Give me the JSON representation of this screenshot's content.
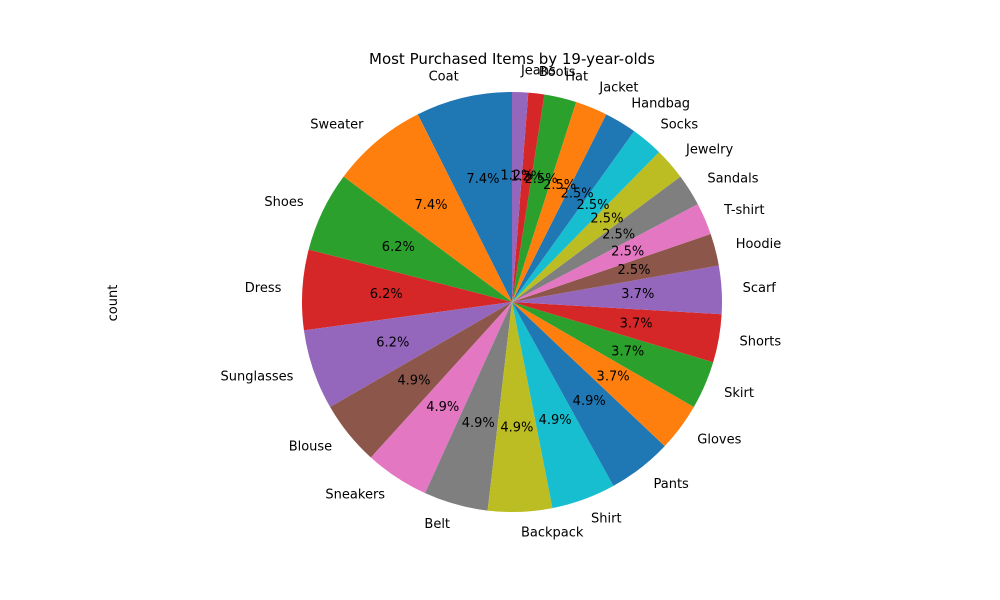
{
  "chart_data": {
    "type": "pie",
    "title": "Most Purchased Items by 19-year-olds",
    "ylabel": "count",
    "start_angle": 90,
    "direction": "counterclockwise",
    "autopct_format": "%1.1f%%",
    "categories": [
      "Coat",
      "Sweater",
      "Shoes",
      "Dress",
      "Sunglasses",
      "Blouse",
      "Sneakers",
      "Belt",
      "Backpack",
      "Shirt",
      "Pants",
      "Gloves",
      "Skirt",
      "Shorts",
      "Scarf",
      "Hoodie",
      "T-shirt",
      "Sandals",
      "Jewelry",
      "Socks",
      "Handbag",
      "Jacket",
      "Hat",
      "Boots",
      "Jeans"
    ],
    "values": [
      6,
      6,
      5,
      5,
      5,
      4,
      4,
      4,
      4,
      4,
      4,
      3,
      3,
      3,
      3,
      2,
      2,
      2,
      2,
      2,
      2,
      2,
      2,
      1,
      1
    ],
    "percent_labels": [
      "7.4%",
      "7.4%",
      "6.2%",
      "6.2%",
      "6.2%",
      "4.9%",
      "4.9%",
      "4.9%",
      "4.9%",
      "4.9%",
      "4.9%",
      "3.7%",
      "3.7%",
      "3.7%",
      "3.7%",
      "2.5%",
      "2.5%",
      "2.5%",
      "2.5%",
      "2.5%",
      "2.5%",
      "2.5%",
      "2.5%",
      "1.2%",
      "1.2%"
    ],
    "colors": [
      "#1f77b4",
      "#ff7f0e",
      "#2ca02c",
      "#d62728",
      "#9467bd",
      "#8c564b",
      "#e377c2",
      "#7f7f7f",
      "#bcbd22",
      "#17becf"
    ],
    "legend": "none",
    "grid": false
  }
}
